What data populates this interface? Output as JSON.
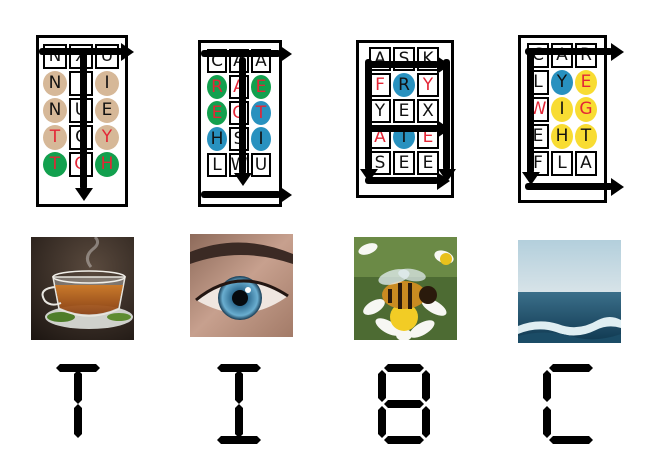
{
  "colors": {
    "tan": "#d6b898",
    "green": "#12a04e",
    "blue": "#2891bf",
    "yellow": "#f8dc32",
    "red": "#e32636",
    "black": "#111111"
  },
  "puzzles": [
    {
      "rows": [
        [
          {
            "t": "N",
            "c": "black"
          },
          {
            "t": "X",
            "c": "black"
          },
          {
            "t": "U",
            "c": "black"
          }
        ],
        [
          {
            "t": "N",
            "c": "black",
            "bg": "tan"
          },
          {
            "t": "",
            "c": "black"
          },
          {
            "t": "I",
            "c": "black",
            "bg": "tan"
          }
        ],
        [
          {
            "t": "N",
            "c": "black",
            "bg": "tan"
          },
          {
            "t": "U",
            "c": "black"
          },
          {
            "t": "E",
            "c": "black",
            "bg": "tan"
          }
        ],
        [
          {
            "t": "T",
            "c": "red",
            "bg": "tan"
          },
          {
            "t": "C",
            "c": "black"
          },
          {
            "t": "Y",
            "c": "red",
            "bg": "tan"
          }
        ],
        [
          {
            "t": "T",
            "c": "red",
            "bg": "green"
          },
          {
            "t": "O",
            "c": "red"
          },
          {
            "t": "H",
            "c": "red",
            "bg": "green"
          }
        ]
      ]
    },
    {
      "rows": [
        [
          {
            "t": "C",
            "c": "black"
          },
          {
            "t": "A",
            "c": "black"
          },
          {
            "t": "A",
            "c": "black"
          }
        ],
        [
          {
            "t": "R",
            "c": "red",
            "bg": "green"
          },
          {
            "t": "A",
            "c": "red"
          },
          {
            "t": "E",
            "c": "red",
            "bg": "green"
          }
        ],
        [
          {
            "t": "E",
            "c": "red",
            "bg": "green"
          },
          {
            "t": "O",
            "c": "red"
          },
          {
            "t": "T",
            "c": "red",
            "bg": "blue"
          }
        ],
        [
          {
            "t": "H",
            "c": "black",
            "bg": "blue"
          },
          {
            "t": "S",
            "c": "black"
          },
          {
            "t": "I",
            "c": "black",
            "bg": "blue"
          }
        ],
        [
          {
            "t": "L",
            "c": "black"
          },
          {
            "t": "W",
            "c": "black"
          },
          {
            "t": "U",
            "c": "black"
          }
        ]
      ]
    },
    {
      "rows": [
        [
          {
            "t": "A",
            "c": "black"
          },
          {
            "t": "S",
            "c": "black"
          },
          {
            "t": "K",
            "c": "black"
          }
        ],
        [
          {
            "t": "F",
            "c": "red"
          },
          {
            "t": "R",
            "c": "black",
            "bg": "blue"
          },
          {
            "t": "Y",
            "c": "red"
          }
        ],
        [
          {
            "t": "Y",
            "c": "black"
          },
          {
            "t": "E",
            "c": "black"
          },
          {
            "t": "X",
            "c": "black"
          }
        ],
        [
          {
            "t": "A",
            "c": "red"
          },
          {
            "t": "T",
            "c": "black",
            "bg": "blue"
          },
          {
            "t": "E",
            "c": "red"
          }
        ],
        [
          {
            "t": "S",
            "c": "black"
          },
          {
            "t": "E",
            "c": "black"
          },
          {
            "t": "E",
            "c": "black"
          }
        ]
      ]
    },
    {
      "rows": [
        [
          {
            "t": "C",
            "c": "black"
          },
          {
            "t": "A",
            "c": "black"
          },
          {
            "t": "R",
            "c": "black"
          }
        ],
        [
          {
            "t": "L",
            "c": "black"
          },
          {
            "t": "Y",
            "c": "black",
            "bg": "blue"
          },
          {
            "t": "E",
            "c": "red",
            "bg": "yellow"
          }
        ],
        [
          {
            "t": "W",
            "c": "red"
          },
          {
            "t": "I",
            "c": "black",
            "bg": "yellow"
          },
          {
            "t": "G",
            "c": "red",
            "bg": "yellow"
          }
        ],
        [
          {
            "t": "E",
            "c": "black"
          },
          {
            "t": "H",
            "c": "black",
            "bg": "yellow"
          },
          {
            "t": "T",
            "c": "black",
            "bg": "yellow"
          }
        ],
        [
          {
            "t": "F",
            "c": "black"
          },
          {
            "t": "L",
            "c": "black"
          },
          {
            "t": "A",
            "c": "black"
          }
        ]
      ]
    }
  ],
  "photos": [
    "tea-cup",
    "eye",
    "bee-on-flower",
    "ocean-wave"
  ],
  "answer_letters": [
    "T",
    "I",
    "B",
    "C"
  ]
}
